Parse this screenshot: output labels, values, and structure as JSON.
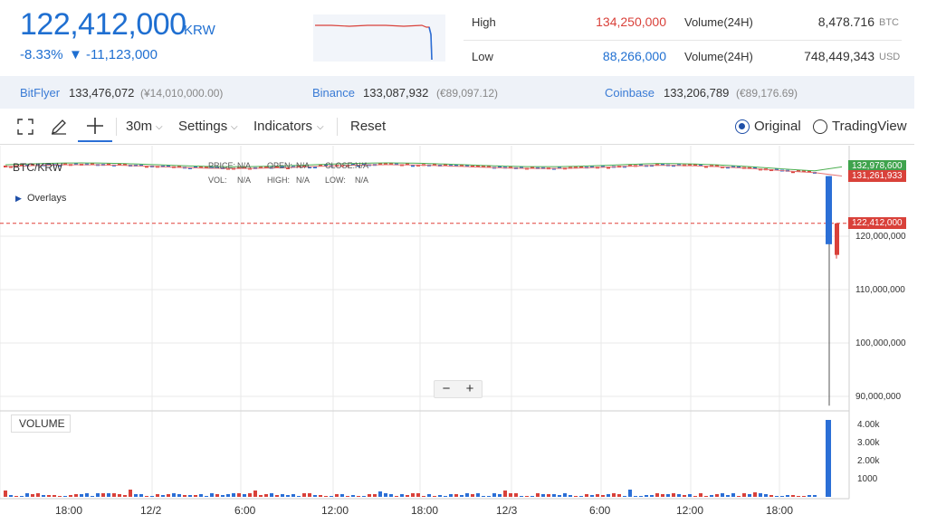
{
  "header": {
    "price": "122,412,000",
    "price_unit": "KRW",
    "change_pct": "-8.33%",
    "change_abs": "▼ -11,123,000",
    "high_label": "High",
    "high_value": "134,250,000",
    "low_label": "Low",
    "low_value": "88,266,000",
    "volume_label_1": "Volume(24H)",
    "volume_value_1": "8,478.716",
    "volume_unit_1": "BTC",
    "volume_label_2": "Volume(24H)",
    "volume_value_2": "748,449,343",
    "volume_unit_2": "USD"
  },
  "exchanges": [
    {
      "name": "BitFlyer",
      "value": "133,476,072",
      "sub": "(¥14,010,000.00)"
    },
    {
      "name": "Binance",
      "value": "133,087,932",
      "sub": "(€89,097.12)"
    },
    {
      "name": "Coinbase",
      "value": "133,206,789",
      "sub": "(€89,176.69)"
    }
  ],
  "toolbar": {
    "interval": "30m",
    "settings": "Settings",
    "indicators": "Indicators",
    "reset": "Reset",
    "original": "Original",
    "tradingview": "TradingView"
  },
  "chart": {
    "symbol": "BTC/KRW",
    "overlays": "Overlays",
    "price_label": "PRICE:",
    "price_val": "N/A",
    "open_label": "OPEN:",
    "open_val": "N/A",
    "close_label": "CLOSE:",
    "close_val": "N/A",
    "vol_label": "VOL:",
    "vol_val": "N/A",
    "high_label": "HIGH:",
    "high_val": "N/A",
    "low_label": "LOW:",
    "low_val": "N/A",
    "tag_green": "132,978,600",
    "tag_red": "131,261,933",
    "tag_current": "122,412,000",
    "volume_label": "VOLUME",
    "zoom_out": "−",
    "zoom_in": "+",
    "colors": {
      "up": "#d9413a",
      "down": "#2b6fd6",
      "ma_green": "#4caf50",
      "ma_red": "#e57373",
      "current": "#e0403a"
    }
  },
  "chart_data": {
    "type": "candlestick",
    "title": "BTC/KRW",
    "y_ticks": [
      "120,000,000",
      "110,000,000",
      "100,000,000",
      "90,000,000"
    ],
    "volume_ticks": [
      "4.00k",
      "3.00k",
      "2.00k",
      "1000"
    ],
    "x_ticks": [
      "18:00",
      "12/2",
      "6:00",
      "12:00",
      "18:00",
      "12/3",
      "6:00",
      "12:00",
      "18:00"
    ],
    "ylim": [
      88000000,
      135000000
    ],
    "last_candle": {
      "open": 131261933,
      "high": 131261933,
      "low": 88266000,
      "close": 122412000
    }
  }
}
